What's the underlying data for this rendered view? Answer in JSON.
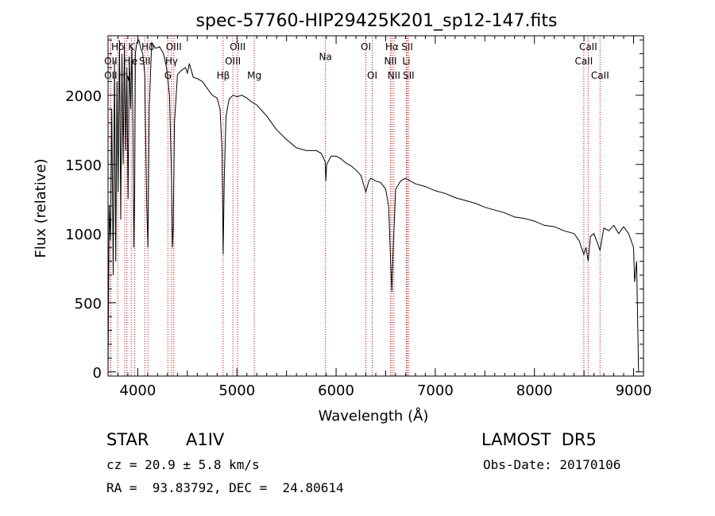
{
  "chart_data": {
    "type": "line",
    "title": "spec-57760-HIP29425K201_sp12-147.fits",
    "xlabel": "Wavelength (Å)",
    "ylabel": "Flux (relative)",
    "xlim": [
      3700,
      9100
    ],
    "ylim": [
      -30,
      2430
    ],
    "xticks": [
      4000,
      5000,
      6000,
      7000,
      8000,
      9000
    ],
    "yticks": [
      0,
      500,
      1000,
      1500,
      2000
    ],
    "grid": false,
    "line_color": "#000000",
    "marker_color": "#cc0000",
    "x": [
      3700,
      3712,
      3725,
      3738,
      3752,
      3765,
      3778,
      3790,
      3802,
      3815,
      3828,
      3840,
      3852,
      3865,
      3878,
      3890,
      3902,
      3915,
      3928,
      3940,
      3952,
      3960,
      3968,
      3976,
      3990,
      4010,
      4030,
      4050,
      4070,
      4090,
      4102,
      4115,
      4140,
      4180,
      4220,
      4260,
      4290,
      4320,
      4340,
      4350,
      4358,
      4370,
      4400,
      4440,
      4480,
      4500,
      4520,
      4560,
      4600,
      4650,
      4700,
      4750,
      4800,
      4830,
      4850,
      4861,
      4872,
      4890,
      4920,
      4960,
      5000,
      5050,
      5100,
      5150,
      5200,
      5250,
      5300,
      5400,
      5500,
      5600,
      5700,
      5800,
      5850,
      5890,
      5896,
      5905,
      5950,
      6000,
      6050,
      6100,
      6150,
      6200,
      6250,
      6300,
      6330,
      6350,
      6400,
      6450,
      6500,
      6530,
      6550,
      6563,
      6576,
      6600,
      6650,
      6700,
      6800,
      6900,
      7000,
      7100,
      7200,
      7300,
      7400,
      7500,
      7600,
      7700,
      7800,
      7900,
      8000,
      8100,
      8200,
      8300,
      8400,
      8450,
      8498,
      8520,
      8542,
      8565,
      8600,
      8662,
      8700,
      8750,
      8800,
      8850,
      8900,
      8950,
      9000,
      9010,
      9030,
      9050
    ],
    "y": [
      0,
      1200,
      950,
      1900,
      700,
      2250,
      800,
      2100,
      1300,
      2400,
      1100,
      2300,
      1500,
      2380,
      1600,
      2200,
      1250,
      2280,
      1900,
      2350,
      1700,
      900,
      1300,
      2300,
      2380,
      2400,
      2340,
      2300,
      2150,
      1200,
      900,
      1900,
      2380,
      2340,
      2350,
      2300,
      2200,
      2000,
      1400,
      900,
      1050,
      1800,
      2150,
      2180,
      2200,
      2160,
      2230,
      2130,
      2120,
      2100,
      2050,
      2000,
      1980,
      1900,
      1600,
      850,
      1400,
      1850,
      1970,
      2000,
      1990,
      2000,
      1980,
      1950,
      1930,
      1890,
      1850,
      1750,
      1680,
      1620,
      1600,
      1600,
      1580,
      1520,
      1380,
      1500,
      1560,
      1560,
      1540,
      1510,
      1490,
      1460,
      1420,
      1300,
      1380,
      1400,
      1380,
      1370,
      1320,
      1200,
      800,
      580,
      900,
      1320,
      1380,
      1400,
      1360,
      1340,
      1310,
      1290,
      1260,
      1240,
      1220,
      1190,
      1170,
      1150,
      1120,
      1110,
      1090,
      1060,
      1050,
      1020,
      1000,
      950,
      850,
      900,
      800,
      980,
      1000,
      880,
      1040,
      1020,
      1060,
      1000,
      1050,
      1000,
      900,
      650,
      800,
      0
    ],
    "lines": [
      {
        "label": "Hδ",
        "x": 3798,
        "row": 1
      },
      {
        "label": "K",
        "x": 3934,
        "row": 1
      },
      {
        "label": "Hδ",
        "x": 4102,
        "row": 1
      },
      {
        "label": "OIII",
        "x": 4363,
        "row": 1
      },
      {
        "label": "OIII",
        "x": 5007,
        "row": 1
      },
      {
        "label": "OI",
        "x": 6300,
        "row": 1
      },
      {
        "label": "Hα",
        "x": 6563,
        "row": 1
      },
      {
        "label": "SII",
        "x": 6717,
        "row": 1
      },
      {
        "label": "CaII",
        "x": 8542,
        "row": 1
      },
      {
        "label": "OII",
        "x": 3727,
        "row": 2
      },
      {
        "label": "H",
        "x": 3890,
        "row": 2
      },
      {
        "label": "e",
        "x": 3969,
        "row": 2
      },
      {
        "label": "SII",
        "x": 4070,
        "row": 2
      },
      {
        "label": "Hγ",
        "x": 4340,
        "row": 2
      },
      {
        "label": "OIII",
        "x": 4959,
        "row": 2
      },
      {
        "label": "NII",
        "x": 6548,
        "row": 2
      },
      {
        "label": "Li",
        "x": 6708,
        "row": 2
      },
      {
        "label": "CaII",
        "x": 8498,
        "row": 2
      },
      {
        "label": "OII",
        "x": 3727,
        "row": 3
      },
      {
        "label": "Hγ",
        "x": 3868,
        "row": 3
      },
      {
        "label": "G",
        "x": 4304,
        "row": 3
      },
      {
        "label": "Hβ",
        "x": 4861,
        "row": 3
      },
      {
        "label": "Mg",
        "x": 5175,
        "row": 3
      },
      {
        "label": "Na",
        "x": 5893,
        "row": 1.7
      },
      {
        "label": "OI",
        "x": 6364,
        "row": 3
      },
      {
        "label": "NII",
        "x": 6583,
        "row": 3
      },
      {
        "label": "SII",
        "x": 6731,
        "row": 3
      },
      {
        "label": "CaII",
        "x": 8662,
        "row": 3
      }
    ]
  },
  "info": {
    "object_class": "STAR",
    "subclass": "A1IV",
    "survey": "LAMOST  DR5",
    "cz": "cz = 20.9 ± 5.8 km/s",
    "obs_date": "Obs-Date: 20170106",
    "coords": "RA =  93.83792, DEC =  24.80614"
  }
}
